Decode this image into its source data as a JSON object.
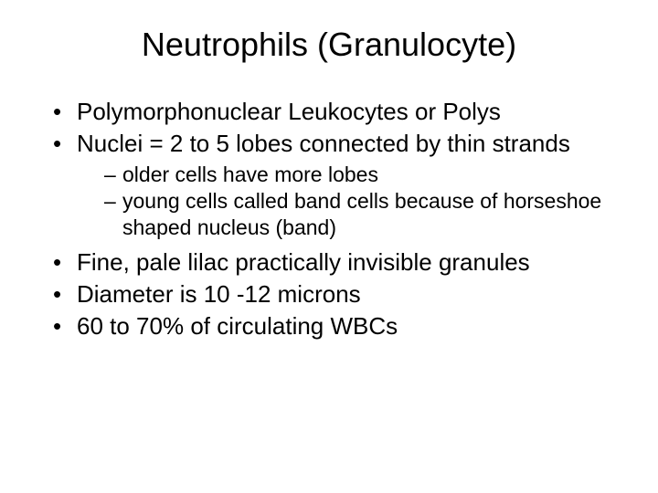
{
  "slide": {
    "title": "Neutrophils (Granulocyte)",
    "bullets": [
      {
        "text": "Polymorphonuclear Leukocytes or Polys"
      },
      {
        "text": "Nuclei = 2 to 5 lobes connected by thin strands"
      },
      {
        "text": "Fine, pale lilac practically invisible granules"
      },
      {
        "text": "Diameter is 10 -12 microns"
      },
      {
        "text": "60 to 70% of circulating WBCs"
      }
    ],
    "sub_bullets": [
      {
        "text": "older cells have more lobes"
      },
      {
        "text": "young cells called band cells because of horseshoe shaped nucleus (band)"
      }
    ],
    "style": {
      "background_color": "#ffffff",
      "text_color": "#000000",
      "title_fontsize": 36,
      "bullet_fontsize": 26,
      "sub_bullet_fontsize": 23,
      "font_family": "Arial"
    }
  }
}
